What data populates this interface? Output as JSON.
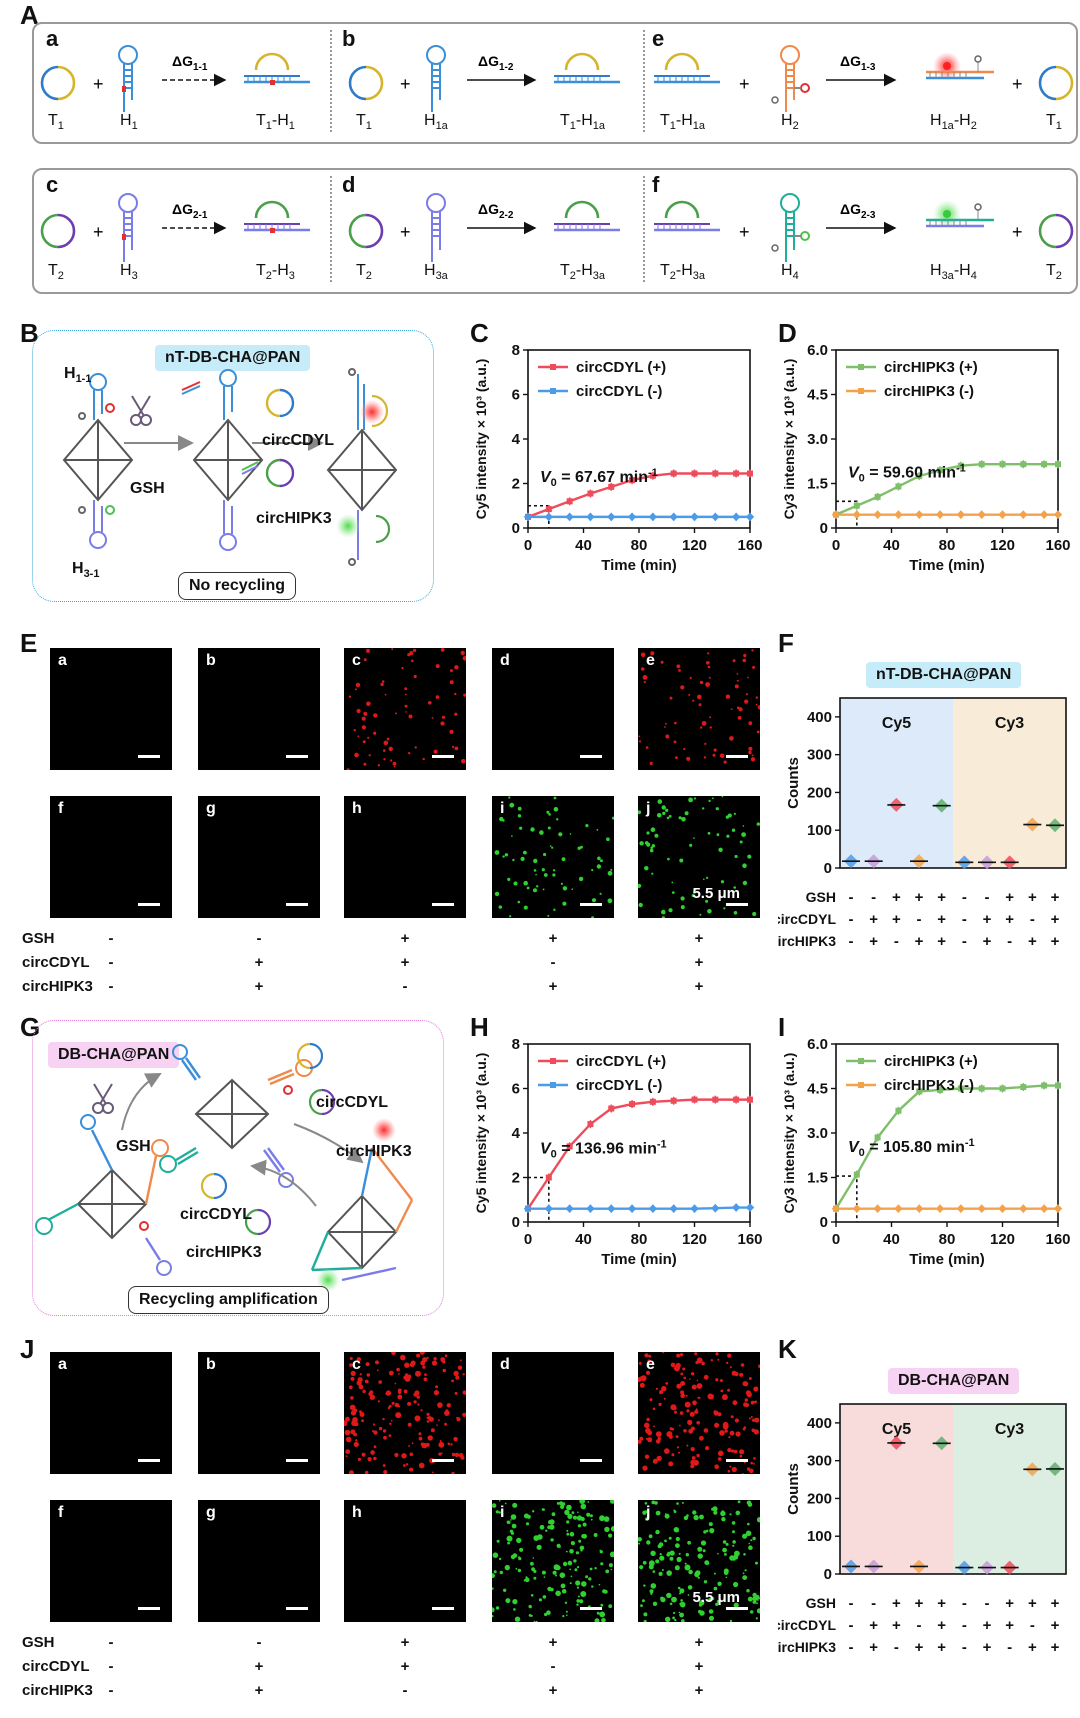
{
  "panel_labels": {
    "A": "A",
    "B": "B",
    "C": "C",
    "D": "D",
    "E": "E",
    "F": "F",
    "G": "G",
    "H": "H",
    "I": "I",
    "J": "J",
    "K": "K"
  },
  "reaction_rows": [
    {
      "cells": [
        {
          "letter": "a",
          "reactants": [
            "T",
            "H"
          ],
          "r_subs": [
            "1",
            "1"
          ],
          "dg": "ΔG",
          "dg_sub": "1-1",
          "dashed": true,
          "product": "T",
          "product_sub": "1",
          "product2": "H",
          "product2_sub": "1"
        },
        {
          "letter": "b",
          "reactants": [
            "T",
            "H"
          ],
          "r_subs": [
            "1",
            "1a"
          ],
          "dg": "ΔG",
          "dg_sub": "1-2",
          "dashed": false,
          "product": "T",
          "product_sub": "1",
          "product2": "H",
          "product2_sub": "1a"
        },
        {
          "letter": "e",
          "reactants": [
            "T",
            "H"
          ],
          "r_subs": [
            "1",
            "2"
          ],
          "r_pre": [
            "T1-H1a"
          ],
          "dg": "ΔG",
          "dg_sub": "1-3",
          "dashed": false
        }
      ]
    }
  ],
  "row1_labels": {
    "a": {
      "letter": "a",
      "t": "T",
      "t_sub": "1",
      "h": "H",
      "h_sub": "1",
      "dg": "ΔG",
      "dg_sub": "1-1",
      "p1": "T",
      "p1_sub": "1",
      "p2": "H",
      "p2_sub": "1"
    },
    "b": {
      "letter": "b",
      "t": "T",
      "t_sub": "1",
      "h": "H",
      "h_sub": "1a",
      "dg": "ΔG",
      "dg_sub": "1-2",
      "p1": "T",
      "p1_sub": "1",
      "p2": "H",
      "p2_sub": "1a"
    },
    "e": {
      "letter": "e",
      "c1": "T",
      "c1_sub": "1",
      "c2": "H",
      "c2_sub": "1a",
      "h": "H",
      "h_sub": "2",
      "dg": "ΔG",
      "dg_sub": "1-3",
      "p1": "H",
      "p1_sub": "1a",
      "p2": "H",
      "p2_sub": "2",
      "t": "T",
      "t_sub": "1"
    }
  },
  "row2_labels": {
    "c": {
      "letter": "c",
      "t": "T",
      "t_sub": "2",
      "h": "H",
      "h_sub": "3",
      "dg": "ΔG",
      "dg_sub": "2-1",
      "p1": "T",
      "p1_sub": "2",
      "p2": "H",
      "p2_sub": "3"
    },
    "d": {
      "letter": "d",
      "t": "T",
      "t_sub": "2",
      "h": "H",
      "h_sub": "3a",
      "dg": "ΔG",
      "dg_sub": "2-2",
      "p1": "T",
      "p1_sub": "2",
      "p2": "H",
      "p2_sub": "3a"
    },
    "f": {
      "letter": "f",
      "c1": "T",
      "c1_sub": "2",
      "c2": "H",
      "c2_sub": "3a",
      "h": "H",
      "h_sub": "4",
      "dg": "ΔG",
      "dg_sub": "2-3",
      "p1": "H",
      "p1_sub": "3a",
      "p2": "H",
      "p2_sub": "4",
      "t": "T",
      "t_sub": "2"
    }
  },
  "schemeB": {
    "title": "nT-DB-CHA@PAN",
    "h11": "H",
    "h11_sub": "1-1",
    "h31": "H",
    "h31_sub": "3-1",
    "gsh": "GSH",
    "circ1": "circCDYL",
    "circ2": "circHIPK3",
    "footer": "No recycling"
  },
  "schemeG": {
    "title": "DB-CHA@PAN",
    "gsh": "GSH",
    "circ1a": "circCDYL",
    "circ2a": "circHIPK3",
    "circ1b": "circCDYL",
    "circ2b": "circHIPK3",
    "footer": "Recycling amplification"
  },
  "colors": {
    "cy5": "#ee4b5b",
    "neg": "#4c9be8",
    "cy3": "#7fbf6b",
    "neg3": "#f3a24b",
    "B_border": "#3aa7e0",
    "G_border": "#e07ad8",
    "B_pill": "#c6ecf9",
    "G_pill": "#f8d2f3",
    "F_bg1": "#dceaf9",
    "F_bg2": "#f8ecd9",
    "K_bg1": "#f8dcdc",
    "K_bg2": "#dceee2"
  },
  "chart_data": [
    {
      "id": "C",
      "type": "line",
      "xlabel": "Time (min)",
      "ylabel": "Cy5 intensity × 10³ (a.u.)",
      "xlim": [
        0,
        160
      ],
      "ylim": [
        0,
        8
      ],
      "xticks": [
        0,
        40,
        80,
        120,
        160
      ],
      "yticks": [
        0,
        2,
        4,
        6,
        8
      ],
      "x": [
        0,
        15,
        30,
        45,
        60,
        75,
        90,
        105,
        120,
        135,
        150,
        160
      ],
      "series": [
        {
          "name": "circCDYL (+)",
          "values": [
            0.5,
            0.85,
            1.2,
            1.55,
            1.85,
            2.15,
            2.35,
            2.45,
            2.45,
            2.45,
            2.45,
            2.45
          ]
        },
        {
          "name": "circCDYL (-)",
          "values": [
            0.5,
            0.5,
            0.5,
            0.5,
            0.5,
            0.5,
            0.5,
            0.5,
            0.5,
            0.5,
            0.5,
            0.5
          ]
        }
      ],
      "annotation": "V",
      "annotation_sub": "0",
      "annotation_rest": " = 67.67 min",
      "annotation_sup": "-1",
      "guide": {
        "x": 15,
        "y": 1.0
      },
      "legend": "top-left"
    },
    {
      "id": "D",
      "type": "line",
      "xlabel": "Time (min)",
      "ylabel": "Cy3 intensity × 10³ (a.u.)",
      "xlim": [
        0,
        160
      ],
      "ylim": [
        0,
        6.0
      ],
      "xticks": [
        0,
        40,
        80,
        120,
        160
      ],
      "yticks": [
        0,
        1.5,
        3.0,
        4.5,
        6.0
      ],
      "ytick_labels": [
        "0",
        "1.5",
        "3.0",
        "4.5",
        "6.0"
      ],
      "x": [
        0,
        15,
        30,
        45,
        60,
        75,
        90,
        105,
        120,
        135,
        150,
        160
      ],
      "series": [
        {
          "name": "circHIPK3 (+)",
          "values": [
            0.45,
            0.75,
            1.05,
            1.4,
            1.75,
            1.95,
            2.1,
            2.15,
            2.15,
            2.15,
            2.15,
            2.15
          ]
        },
        {
          "name": "circHIPK3 (-)",
          "values": [
            0.45,
            0.45,
            0.45,
            0.45,
            0.45,
            0.45,
            0.45,
            0.45,
            0.45,
            0.45,
            0.45,
            0.45
          ]
        }
      ],
      "annotation": "V",
      "annotation_sub": "0",
      "annotation_rest": " = 59.60 min",
      "annotation_sup": "-1",
      "guide": {
        "x": 15,
        "y": 0.9
      },
      "legend": "top-left"
    },
    {
      "id": "H",
      "type": "line",
      "xlabel": "Time (min)",
      "ylabel": "Cy5 intensity × 10³ (a.u.)",
      "xlim": [
        0,
        160
      ],
      "ylim": [
        0,
        8
      ],
      "xticks": [
        0,
        40,
        80,
        120,
        160
      ],
      "yticks": [
        0,
        2,
        4,
        6,
        8
      ],
      "x": [
        0,
        15,
        30,
        45,
        60,
        75,
        90,
        105,
        120,
        135,
        150,
        160
      ],
      "series": [
        {
          "name": "circCDYL (+)",
          "values": [
            0.6,
            2.0,
            3.4,
            4.4,
            5.1,
            5.3,
            5.4,
            5.45,
            5.5,
            5.5,
            5.5,
            5.5
          ]
        },
        {
          "name": "circCDYL (-)",
          "values": [
            0.6,
            0.6,
            0.6,
            0.6,
            0.6,
            0.6,
            0.6,
            0.6,
            0.6,
            0.62,
            0.65,
            0.65
          ]
        }
      ],
      "annotation": "V",
      "annotation_sub": "0",
      "annotation_rest": " = 136.96 min",
      "annotation_sup": "-1",
      "guide": {
        "x": 15,
        "y": 2.0
      },
      "legend": "top-left"
    },
    {
      "id": "I",
      "type": "line",
      "xlabel": "Time (min)",
      "ylabel": "Cy3 intensity × 10³ (a.u.)",
      "xlim": [
        0,
        160
      ],
      "ylim": [
        0,
        6.0
      ],
      "xticks": [
        0,
        40,
        80,
        120,
        160
      ],
      "yticks": [
        0,
        1.5,
        3.0,
        4.5,
        6.0
      ],
      "ytick_labels": [
        "0",
        "1.5",
        "3.0",
        "4.5",
        "6.0"
      ],
      "x": [
        0,
        15,
        30,
        45,
        60,
        75,
        90,
        105,
        120,
        135,
        150,
        160
      ],
      "series": [
        {
          "name": "circHIPK3 (+)",
          "values": [
            0.45,
            1.6,
            2.85,
            3.75,
            4.4,
            4.45,
            4.5,
            4.5,
            4.5,
            4.55,
            4.6,
            4.6
          ]
        },
        {
          "name": "circHIPK3 (-)",
          "values": [
            0.45,
            0.45,
            0.45,
            0.45,
            0.45,
            0.45,
            0.45,
            0.45,
            0.45,
            0.45,
            0.45,
            0.45
          ]
        }
      ],
      "annotation": "V",
      "annotation_sub": "0",
      "annotation_rest": " = 105.80 min",
      "annotation_sup": "-1",
      "guide": {
        "x": 15,
        "y": 1.55
      },
      "legend": "top-left"
    },
    {
      "id": "F",
      "type": "scatter",
      "title": "nT-DB-CHA@PAN",
      "ylabel": "Counts",
      "ylim": [
        0,
        450
      ],
      "yticks": [
        0,
        100,
        200,
        300,
        400
      ],
      "groups": [
        "Cy5",
        "Cy3"
      ],
      "values": [
        18,
        18,
        167,
        18,
        165,
        15,
        15,
        15,
        115,
        113
      ],
      "point_colors": [
        "#4c9be8",
        "#c79ad6",
        "#ee4b5b",
        "#f3a24b",
        "#5fae6e",
        "#4c9be8",
        "#c79ad6",
        "#ee4b5b",
        "#f3a24b",
        "#5fae6e"
      ],
      "conditions": {
        "GSH": [
          "-",
          "-",
          "+",
          "+",
          "+",
          "-",
          "-",
          "+",
          "+",
          "+"
        ],
        "circCDYL": [
          "-",
          "+",
          "+",
          "-",
          "+",
          "-",
          "+",
          "+",
          "-",
          "+"
        ],
        "circHIPK3": [
          "-",
          "+",
          "-",
          "+",
          "+",
          "-",
          "+",
          "-",
          "+",
          "+"
        ]
      }
    },
    {
      "id": "K",
      "type": "scatter",
      "title": "DB-CHA@PAN",
      "ylabel": "Counts",
      "ylim": [
        0,
        450
      ],
      "yticks": [
        0,
        100,
        200,
        300,
        400
      ],
      "groups": [
        "Cy5",
        "Cy3"
      ],
      "values": [
        20,
        20,
        347,
        20,
        346,
        17,
        17,
        17,
        277,
        278
      ],
      "point_colors": [
        "#4c9be8",
        "#c79ad6",
        "#ee4b5b",
        "#f3a24b",
        "#5fae6e",
        "#4c9be8",
        "#c79ad6",
        "#ee4b5b",
        "#f3a24b",
        "#5fae6e"
      ],
      "conditions": {
        "GSH": [
          "-",
          "-",
          "+",
          "+",
          "+",
          "-",
          "-",
          "+",
          "+",
          "+"
        ],
        "circCDYL": [
          "-",
          "+",
          "+",
          "-",
          "+",
          "-",
          "+",
          "+",
          "-",
          "+"
        ],
        "circHIPK3": [
          "-",
          "+",
          "-",
          "+",
          "+",
          "-",
          "+",
          "-",
          "+",
          "+"
        ]
      }
    }
  ],
  "imageE": {
    "labels_top": [
      "a",
      "b",
      "c",
      "d",
      "e"
    ],
    "labels_bot": [
      "f",
      "g",
      "h",
      "i",
      "j"
    ],
    "scale": "5.5 μm",
    "conditions": {
      "GSH": {
        "label": "GSH",
        "signs": [
          "-",
          "-",
          "+",
          "+",
          "+"
        ]
      },
      "circCDYL": {
        "label": "circCDYL",
        "signs": [
          "-",
          "+",
          "+",
          "-",
          "+"
        ]
      },
      "circHIPK3": {
        "label": "circHIPK3",
        "signs": [
          "-",
          "+",
          "-",
          "+",
          "+"
        ]
      }
    }
  },
  "imageJ": {
    "labels_top": [
      "a",
      "b",
      "c",
      "d",
      "e"
    ],
    "labels_bot": [
      "f",
      "g",
      "h",
      "i",
      "j"
    ],
    "scale": "5.5 μm",
    "conditions": {
      "GSH": {
        "label": "GSH",
        "signs": [
          "-",
          "-",
          "+",
          "+",
          "+"
        ]
      },
      "circCDYL": {
        "label": "circCDYL",
        "signs": [
          "-",
          "+",
          "+",
          "-",
          "+"
        ]
      },
      "circHIPK3": {
        "label": "circHIPK3",
        "signs": [
          "-",
          "+",
          "-",
          "+",
          "+"
        ]
      }
    }
  }
}
